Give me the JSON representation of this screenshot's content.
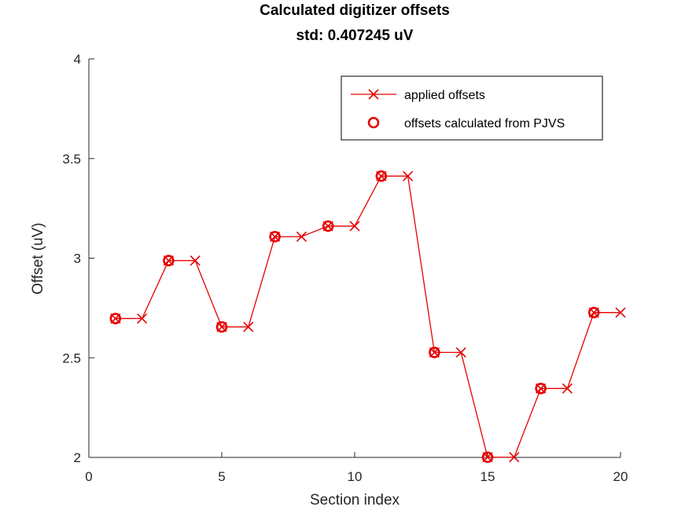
{
  "chart_data": {
    "type": "line",
    "title": "Calculated digitizer offsets",
    "subtitle": "std: 0.407245 uV",
    "xlabel": "Section index",
    "ylabel": "Offset (uV)",
    "xlim": [
      0,
      20
    ],
    "ylim": [
      2,
      4
    ],
    "xticks": [
      0,
      5,
      10,
      15,
      20
    ],
    "yticks": [
      2,
      2.5,
      3,
      3.5,
      4
    ],
    "xtick_labels": [
      "0",
      "5",
      "10",
      "15",
      "20"
    ],
    "ytick_labels": [
      "2",
      "2.5",
      "3",
      "3.5",
      "4"
    ],
    "grid": false,
    "legend_position": "top-right",
    "series": [
      {
        "name": "applied offsets",
        "style": "line-with-x-markers",
        "color": "#e60000",
        "x": [
          1,
          2,
          3,
          4,
          5,
          6,
          7,
          8,
          9,
          10,
          11,
          12,
          13,
          14,
          15,
          16,
          17,
          18,
          19,
          20
        ],
        "y": [
          2.697,
          2.697,
          2.988,
          2.988,
          2.655,
          2.655,
          3.108,
          3.108,
          3.161,
          3.161,
          3.412,
          3.412,
          2.527,
          2.527,
          2.001,
          2.001,
          2.346,
          2.346,
          2.727,
          2.727
        ]
      },
      {
        "name": "offsets calculated from PJVS",
        "style": "circle-markers",
        "color": "#e60000",
        "x": [
          1,
          3,
          5,
          7,
          9,
          11,
          13,
          15,
          17,
          19
        ],
        "y": [
          2.697,
          2.988,
          2.655,
          3.108,
          3.161,
          3.412,
          2.527,
          2.001,
          2.346,
          2.727
        ]
      }
    ]
  }
}
